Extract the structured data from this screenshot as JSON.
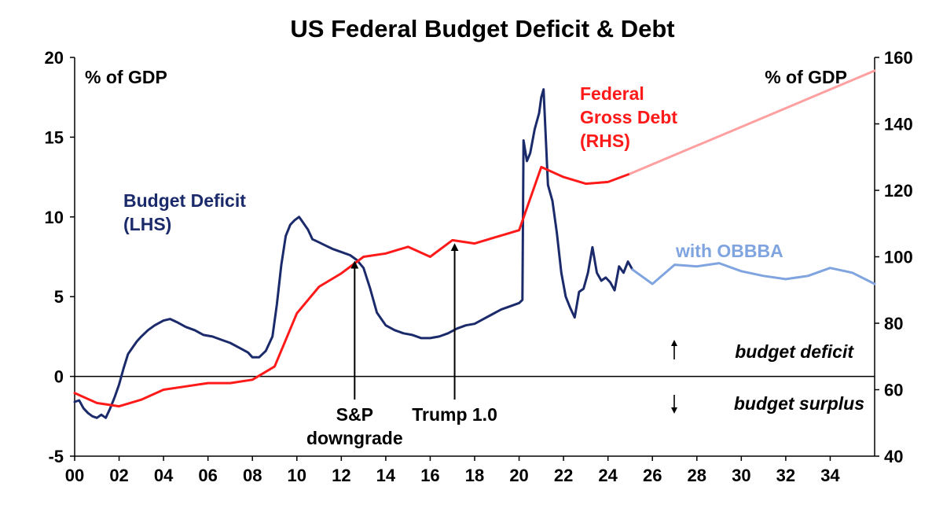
{
  "chart_data": {
    "type": "line",
    "title": "US Federal Budget Deficit & Debt",
    "y_left_unit": "% of GDP",
    "y_right_unit": "% of GDP",
    "x_range": [
      2000,
      2036
    ],
    "y_left_range": [
      -5,
      20
    ],
    "y_right_range": [
      40,
      160
    ],
    "x_ticks": [
      2000,
      2002,
      2004,
      2006,
      2008,
      2010,
      2012,
      2014,
      2016,
      2018,
      2020,
      2022,
      2024,
      2026,
      2028,
      2030,
      2032,
      2034
    ],
    "x_tick_labels": [
      "00",
      "02",
      "04",
      "06",
      "08",
      "10",
      "12",
      "14",
      "16",
      "18",
      "20",
      "22",
      "24",
      "26",
      "28",
      "30",
      "32",
      "34"
    ],
    "y_left_ticks": [
      -5,
      0,
      5,
      10,
      15,
      20
    ],
    "y_left_tick_labels": [
      "-5",
      "0",
      "5",
      "10",
      "15",
      "20"
    ],
    "y_right_ticks": [
      40,
      60,
      80,
      100,
      120,
      140,
      160
    ],
    "y_right_tick_labels": [
      "40",
      "60",
      "80",
      "100",
      "120",
      "140",
      "160"
    ],
    "colors": {
      "deficit": "#1b2a6b",
      "deficit_projection": "#7fa4e0",
      "debt": "#ff1a1a",
      "debt_projection": "#ffa0a0",
      "axis": "#000000"
    },
    "series": [
      {
        "name_lines": [
          "Budget Deficit",
          "(LHS)"
        ],
        "axis": "left",
        "x": [
          2000.0,
          2000.2,
          2000.4,
          2000.6,
          2000.8,
          2001.0,
          2001.2,
          2001.4,
          2001.6,
          2001.8,
          2002.0,
          2002.2,
          2002.4,
          2002.6,
          2002.8,
          2003.0,
          2003.3,
          2003.6,
          2004.0,
          2004.3,
          2004.6,
          2005.0,
          2005.4,
          2005.8,
          2006.2,
          2006.6,
          2007.0,
          2007.4,
          2007.8,
          2008.0,
          2008.3,
          2008.6,
          2008.9,
          2009.1,
          2009.3,
          2009.5,
          2009.7,
          2009.9,
          2010.1,
          2010.3,
          2010.5,
          2010.7,
          2011.0,
          2011.3,
          2011.6,
          2012.0,
          2012.4,
          2012.7,
          2013.0,
          2013.3,
          2013.6,
          2014.0,
          2014.4,
          2014.8,
          2015.2,
          2015.6,
          2016.0,
          2016.4,
          2016.8,
          2017.2,
          2017.6,
          2018.0,
          2018.4,
          2018.8,
          2019.2,
          2019.6,
          2020.0,
          2020.15,
          2020.2,
          2020.35,
          2020.5,
          2020.7,
          2020.9,
          2021.0,
          2021.1,
          2021.2,
          2021.3,
          2021.5,
          2021.7,
          2021.9,
          2022.1,
          2022.3,
          2022.5,
          2022.7,
          2022.9,
          2023.1,
          2023.3,
          2023.5,
          2023.7,
          2023.9,
          2024.1,
          2024.3,
          2024.5,
          2024.7,
          2024.9,
          2025.1
        ],
        "y": [
          -1.6,
          -1.5,
          -2.0,
          -2.3,
          -2.5,
          -2.6,
          -2.4,
          -2.6,
          -2.0,
          -1.3,
          -0.5,
          0.5,
          1.4,
          1.8,
          2.2,
          2.5,
          2.9,
          3.2,
          3.5,
          3.6,
          3.4,
          3.1,
          2.9,
          2.6,
          2.5,
          2.3,
          2.1,
          1.8,
          1.5,
          1.2,
          1.2,
          1.6,
          2.5,
          4.5,
          7.0,
          8.8,
          9.5,
          9.8,
          10.0,
          9.6,
          9.2,
          8.6,
          8.4,
          8.2,
          8.0,
          7.8,
          7.6,
          7.3,
          6.8,
          5.5,
          4.0,
          3.2,
          2.9,
          2.7,
          2.6,
          2.4,
          2.4,
          2.5,
          2.7,
          3.0,
          3.2,
          3.3,
          3.6,
          3.9,
          4.2,
          4.4,
          4.6,
          4.8,
          14.8,
          13.5,
          14.0,
          15.5,
          16.5,
          17.5,
          18.0,
          15.0,
          12.0,
          11.0,
          9.0,
          6.5,
          5.0,
          4.3,
          3.7,
          5.3,
          5.5,
          6.5,
          8.1,
          6.5,
          6.0,
          6.2,
          5.9,
          5.4,
          6.9,
          6.5,
          7.2,
          6.7
        ]
      },
      {
        "name": "with OBBBA",
        "axis": "left",
        "projection": true,
        "x": [
          2025.1,
          2026,
          2027,
          2028,
          2029,
          2030,
          2031,
          2032,
          2033,
          2034,
          2035,
          2036
        ],
        "y": [
          6.7,
          5.8,
          7.0,
          6.9,
          7.1,
          6.6,
          6.3,
          6.1,
          6.3,
          6.8,
          6.5,
          5.8
        ]
      },
      {
        "name_lines": [
          "Federal",
          "Gross Debt",
          "(RHS)"
        ],
        "axis": "right",
        "x": [
          2000,
          2001,
          2002,
          2003,
          2004,
          2005,
          2006,
          2007,
          2008,
          2009,
          2010,
          2011,
          2012,
          2013,
          2014,
          2015,
          2016,
          2017,
          2018,
          2019,
          2020,
          2021,
          2022,
          2023,
          2024,
          2025
        ],
        "y": [
          59,
          56,
          55,
          57,
          60,
          61,
          62,
          62,
          63,
          67,
          83,
          91,
          95,
          100,
          101,
          103,
          100,
          105,
          104,
          106,
          108,
          127,
          124,
          122,
          122.5,
          125
        ]
      },
      {
        "name": "Federal Gross Debt (RHS) projection",
        "axis": "right",
        "projection": true,
        "x": [
          2025,
          2036
        ],
        "y": [
          125,
          156
        ]
      }
    ],
    "annotations": [
      {
        "id": "sp",
        "text_lines": [
          "S&P",
          "downgrade"
        ],
        "x": 2012.6,
        "arrow_to_left_value": 7.4
      },
      {
        "id": "trump",
        "text_lines": [
          "Trump 1.0"
        ],
        "x": 2017.1,
        "arrow_to_left_value": 8.5
      }
    ],
    "side_labels": {
      "deficit_up": "budget deficit",
      "surplus_down": "budget surplus"
    },
    "grid": false
  }
}
